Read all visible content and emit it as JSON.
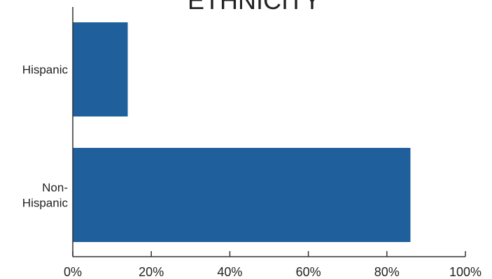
{
  "chart_data": {
    "type": "bar",
    "orientation": "horizontal",
    "title": "ETHNICITY",
    "categories": [
      "Hispanic",
      "Non-Hispanic"
    ],
    "category_lines": [
      [
        "Hispanic"
      ],
      [
        "Non-",
        "Hispanic"
      ]
    ],
    "values": [
      14,
      86
    ],
    "xlim": [
      0,
      100
    ],
    "xticks": [
      0,
      20,
      40,
      60,
      80,
      100
    ],
    "xtick_labels": [
      "0%",
      "20%",
      "40%",
      "60%",
      "80%",
      "100%"
    ],
    "xlabel": "",
    "ylabel": "",
    "grid": false,
    "legend": "none",
    "bar_color": "#1f5f9c",
    "axis_color": "#333333"
  }
}
